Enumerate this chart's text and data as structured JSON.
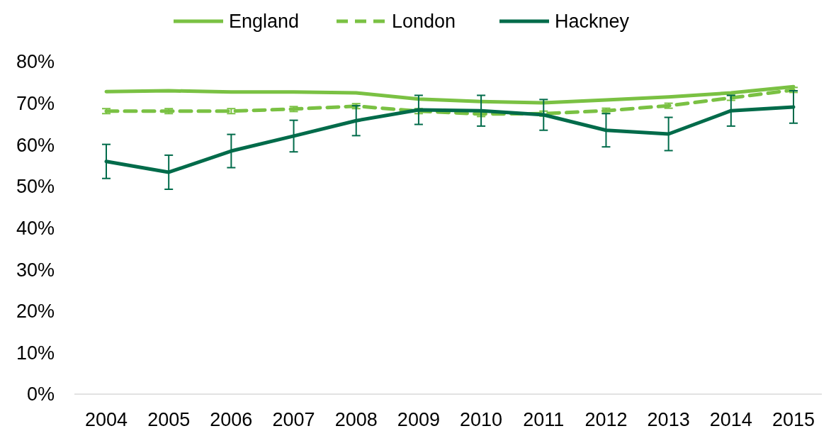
{
  "chart_data": {
    "type": "line",
    "categories": [
      "2004",
      "2005",
      "2006",
      "2007",
      "2008",
      "2009",
      "2010",
      "2011",
      "2012",
      "2013",
      "2014",
      "2015"
    ],
    "series": [
      {
        "name": "England",
        "color": "#7ac143",
        "line_style": "solid",
        "values": [
          72.8,
          73.0,
          72.7,
          72.7,
          72.5,
          71.0,
          70.4,
          70.1,
          70.8,
          71.5,
          72.5,
          74.0
        ]
      },
      {
        "name": "London",
        "color": "#7ac143",
        "line_style": "dashed",
        "values": [
          68.1,
          68.1,
          68.1,
          68.6,
          69.3,
          68.1,
          67.4,
          67.5,
          68.2,
          69.4,
          71.3,
          73.2
        ],
        "errors": [
          0.6,
          0.6,
          0.6,
          0.6,
          0.6,
          0.6,
          0.6,
          0.6,
          0.6,
          0.6,
          0.6,
          0.6
        ]
      },
      {
        "name": "Hackney",
        "color": "#006b4a",
        "line_style": "solid",
        "values": [
          56.0,
          53.4,
          58.5,
          62.1,
          65.8,
          68.4,
          68.2,
          67.2,
          63.5,
          62.6,
          68.2,
          69.1
        ],
        "errors": [
          4.1,
          4.1,
          4.0,
          3.8,
          3.6,
          3.5,
          3.7,
          3.7,
          4.0,
          4.0,
          3.7,
          3.9
        ]
      }
    ],
    "ylim": [
      0,
      80
    ],
    "yticks": [
      {
        "value": 0,
        "label": "0%"
      },
      {
        "value": 10,
        "label": "10%"
      },
      {
        "value": 20,
        "label": "20%"
      },
      {
        "value": 30,
        "label": "30%"
      },
      {
        "value": 40,
        "label": "40%"
      },
      {
        "value": 50,
        "label": "50%"
      },
      {
        "value": 60,
        "label": "60%"
      },
      {
        "value": 70,
        "label": "70%"
      },
      {
        "value": 80,
        "label": "80%"
      }
    ],
    "grid": false,
    "legend": "top",
    "marker": "none"
  }
}
